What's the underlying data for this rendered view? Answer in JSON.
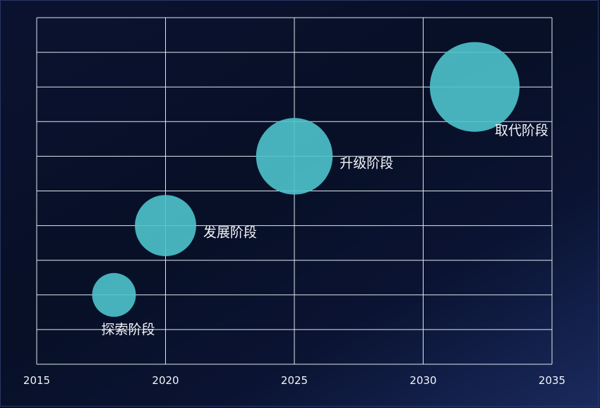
{
  "chart_data": {
    "type": "scatter",
    "title": "",
    "xlabel": "",
    "ylabel": "",
    "xlim": [
      2015,
      2035
    ],
    "ylim": [
      0,
      10
    ],
    "x_ticks": [
      "2015",
      "2020",
      "2025",
      "2030",
      "2035"
    ],
    "grid": true,
    "points": [
      {
        "label": "探索阶段",
        "x": 2018,
        "y": 2,
        "size": 1.0,
        "label_position": "bottom"
      },
      {
        "label": "发展阶段",
        "x": 2020,
        "y": 4,
        "size": 1.4,
        "label_position": "right"
      },
      {
        "label": "升级阶段",
        "x": 2025,
        "y": 6,
        "size": 1.75,
        "label_position": "right"
      },
      {
        "label": "取代阶段",
        "x": 2032,
        "y": 8,
        "size": 2.05,
        "label_position": "bottom-right"
      }
    ],
    "colors": {
      "bubble": "#4fc3cc",
      "grid": "#dfe7ef",
      "text": "#f2f4f8"
    }
  }
}
